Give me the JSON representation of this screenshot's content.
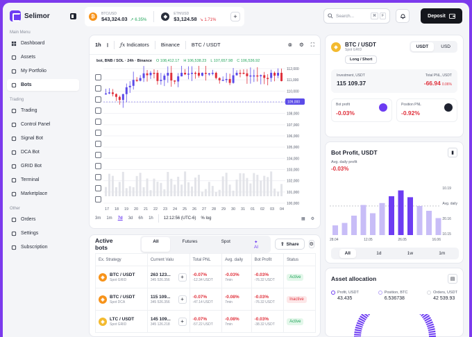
{
  "brand": {
    "name": "Selimor"
  },
  "sidebar": {
    "sections": [
      {
        "title": "Main Menu",
        "items": [
          {
            "label": "Dashboard",
            "icon": "dashboard-icon"
          },
          {
            "label": "Assets",
            "icon": "wallet-icon"
          },
          {
            "label": "My Portfolio",
            "icon": "portfolio-icon"
          },
          {
            "label": "Bots",
            "icon": "bot-icon",
            "active": true
          }
        ]
      },
      {
        "title": "Trading",
        "items": [
          {
            "label": "Trading",
            "icon": "trading-icon"
          },
          {
            "label": "Control Panel",
            "icon": "control-panel-icon"
          },
          {
            "label": "Signal Bot",
            "icon": "signal-icon"
          },
          {
            "label": "DCA Bot",
            "icon": "dca-icon"
          },
          {
            "label": "GRID Bot",
            "icon": "grid-icon"
          },
          {
            "label": "Terminal",
            "icon": "terminal-icon"
          },
          {
            "label": "Marketplace",
            "icon": "marketplace-icon"
          }
        ]
      },
      {
        "title": "Other",
        "items": [
          {
            "label": "Orders",
            "icon": "orders-icon"
          },
          {
            "label": "Settings",
            "icon": "settings-icon"
          },
          {
            "label": "Subscription",
            "icon": "subscription-icon"
          }
        ]
      }
    ]
  },
  "topbar": {
    "tickers": [
      {
        "pair": "BTC/USD",
        "price": "$43,324.03",
        "change": "6.35%",
        "direction": "up",
        "coin": "btc"
      },
      {
        "pair": "ETH/USD",
        "price": "$3,124.58",
        "change": "1.71%",
        "direction": "down",
        "coin": "eth"
      }
    ],
    "search_placeholder": "Search...",
    "search_kbd": [
      "⌘",
      "F"
    ],
    "deposit_label": "Deposit"
  },
  "chart": {
    "toolbar": {
      "interval": "1h",
      "indicators": "Indicators",
      "exchange": "Binance",
      "pair": "BTC / USDT"
    },
    "legend": {
      "label": "bot, BNB / SOL · 24h · Binance",
      "o": "108,412.17",
      "h": "106,538.23",
      "l": "107,657.98",
      "c": "106,536.92"
    },
    "price_axis": [
      "112,000",
      "111,000",
      "110,000",
      "109,000",
      "108,000",
      "107,000",
      "106,000",
      "105,000",
      "104,000",
      "103,000",
      "102,000",
      "101,000",
      "100,000"
    ],
    "current_price": "109,000",
    "x_ticks": [
      "17",
      "18",
      "19",
      "20",
      "21",
      "22",
      "23",
      "24",
      "25",
      "26",
      "27",
      "28",
      "29",
      "30",
      "31",
      "01",
      "02",
      "03",
      "04"
    ],
    "timeframes": [
      "3m",
      "1m",
      "7d",
      "3d",
      "6h",
      "1h"
    ],
    "active_timeframe": "7d",
    "clock": "12:12:56 (UTC-6)",
    "scale": "% log",
    "colors": {
      "up": "#5b4be8",
      "down": "#e0303b"
    }
  },
  "pair_card": {
    "pair": "BTC / USDT",
    "type": "Spot GRID",
    "mode": "Long / Short",
    "toggle": [
      "USDT",
      "USD"
    ],
    "investment_label": "Investment, USDT",
    "investment_value": "115 109.37",
    "total_pnl_label": "Total PNL, USDT",
    "total_pnl_value": "-66.94",
    "total_pnl_pct": "0.06%",
    "bot_profit_label": "Bot profit",
    "bot_profit_value": "-0.03%",
    "position_pnl_label": "Position PNL",
    "position_pnl_value": "-0.92%"
  },
  "bot_profit": {
    "title": "Bot Profit, USDT",
    "avg_label": "Avg. daily profit",
    "avg_value": "-0.03%",
    "y_ticks": [
      "10.19",
      "Avg. daily",
      "20.16",
      "10.15"
    ],
    "x_ticks": [
      "28.04",
      "12.05",
      "26.05",
      "16.06"
    ],
    "periods": [
      "All",
      "1d",
      "1w",
      "1m"
    ],
    "active_period": "All",
    "bars": [
      {
        "v": 0.2,
        "hi": false
      },
      {
        "v": 0.25,
        "hi": false
      },
      {
        "v": 0.4,
        "hi": false
      },
      {
        "v": 0.62,
        "hi": false
      },
      {
        "v": 0.45,
        "hi": false
      },
      {
        "v": 0.66,
        "hi": false
      },
      {
        "v": 0.8,
        "hi": true
      },
      {
        "v": 0.92,
        "hi": true
      },
      {
        "v": 0.78,
        "hi": true
      },
      {
        "v": 0.6,
        "hi": false
      },
      {
        "v": 0.5,
        "hi": false
      },
      {
        "v": 0.35,
        "hi": false
      }
    ]
  },
  "allocation": {
    "title": "Asset allocation",
    "items": [
      {
        "label": "Profit, USDT",
        "value": "43.435",
        "color": "#6d3cf2"
      },
      {
        "label": "Position, BTC",
        "value": "6.536738",
        "color": "#b9a7f7"
      },
      {
        "label": "Orders, USDT",
        "value": "42 539.93",
        "color": "#d6d8de"
      }
    ]
  },
  "bots": {
    "title": "Active bots",
    "filters": [
      "All",
      "Futures",
      "Spot",
      "AI"
    ],
    "active_filter": "All",
    "share_label": "Share",
    "columns": [
      "Ex. Strategy",
      "Current Valu",
      "Total PNL",
      "Avg. daily",
      "Bot Profit",
      "Status"
    ],
    "rows": [
      {
        "pair": "BTC / USDT",
        "type": "Spot GRID",
        "coin": "btc",
        "value": "263 123...",
        "value_sub": "345 526.356",
        "pnl": "-0.07%",
        "pnl_sub": "-12.34 USDT",
        "avg": "-0.03%",
        "avg_sub": "7min",
        "profit": "-0.03%",
        "profit_sub": "-76.32 USDT",
        "status": "Active"
      },
      {
        "pair": "BTC / USDT",
        "type": "Spot DCA",
        "coin": "btc",
        "value": "115 109...",
        "value_sub": "345 526.356",
        "pnl": "-0.07%",
        "pnl_sub": "-47.14 USDT",
        "avg": "-0.08%",
        "avg_sub": "7min",
        "profit": "-0.03%",
        "profit_sub": "-76.32 USDT",
        "status": "Inactive"
      },
      {
        "pair": "LTC / USDT",
        "type": "Spot GRID",
        "coin": "ltc",
        "value": "145 109...",
        "value_sub": "345 126.218",
        "pnl": "-0.07%",
        "pnl_sub": "-57.22 USDT",
        "avg": "-0.08%",
        "avg_sub": "7min",
        "profit": "-0.03%",
        "profit_sub": "-38.32 USDT",
        "status": "Active"
      }
    ]
  }
}
